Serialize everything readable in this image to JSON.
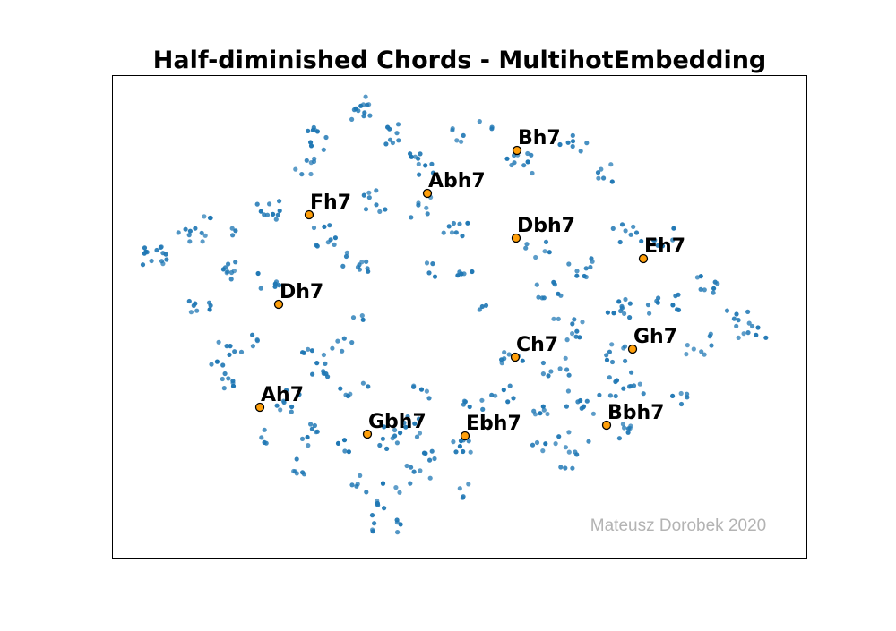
{
  "chart_data": {
    "type": "scatter",
    "title": "Half-diminished Chords - MultihotEmbedding",
    "xlabel": "",
    "ylabel": "",
    "axes_ticks_visible": false,
    "grid": false,
    "colors": {
      "background_points": "#1f77b4",
      "highlight_points": "#ff9f0a",
      "highlight_edge": "#000000",
      "frame": "#000000",
      "watermark": "#b3b3b3"
    },
    "highlighted_chords": [
      {
        "label": "Bh7"
      },
      {
        "label": "Abh7"
      },
      {
        "label": "Fh7"
      },
      {
        "label": "Dbh7"
      },
      {
        "label": "Eh7"
      },
      {
        "label": "Dh7"
      },
      {
        "label": "Ch7"
      },
      {
        "label": "Gh7"
      },
      {
        "label": "Ah7"
      },
      {
        "label": "Gbh7"
      },
      {
        "label": "Ebh7"
      },
      {
        "label": "Bbh7"
      }
    ]
  },
  "watermark": "Mateusz Dorobek 2020"
}
